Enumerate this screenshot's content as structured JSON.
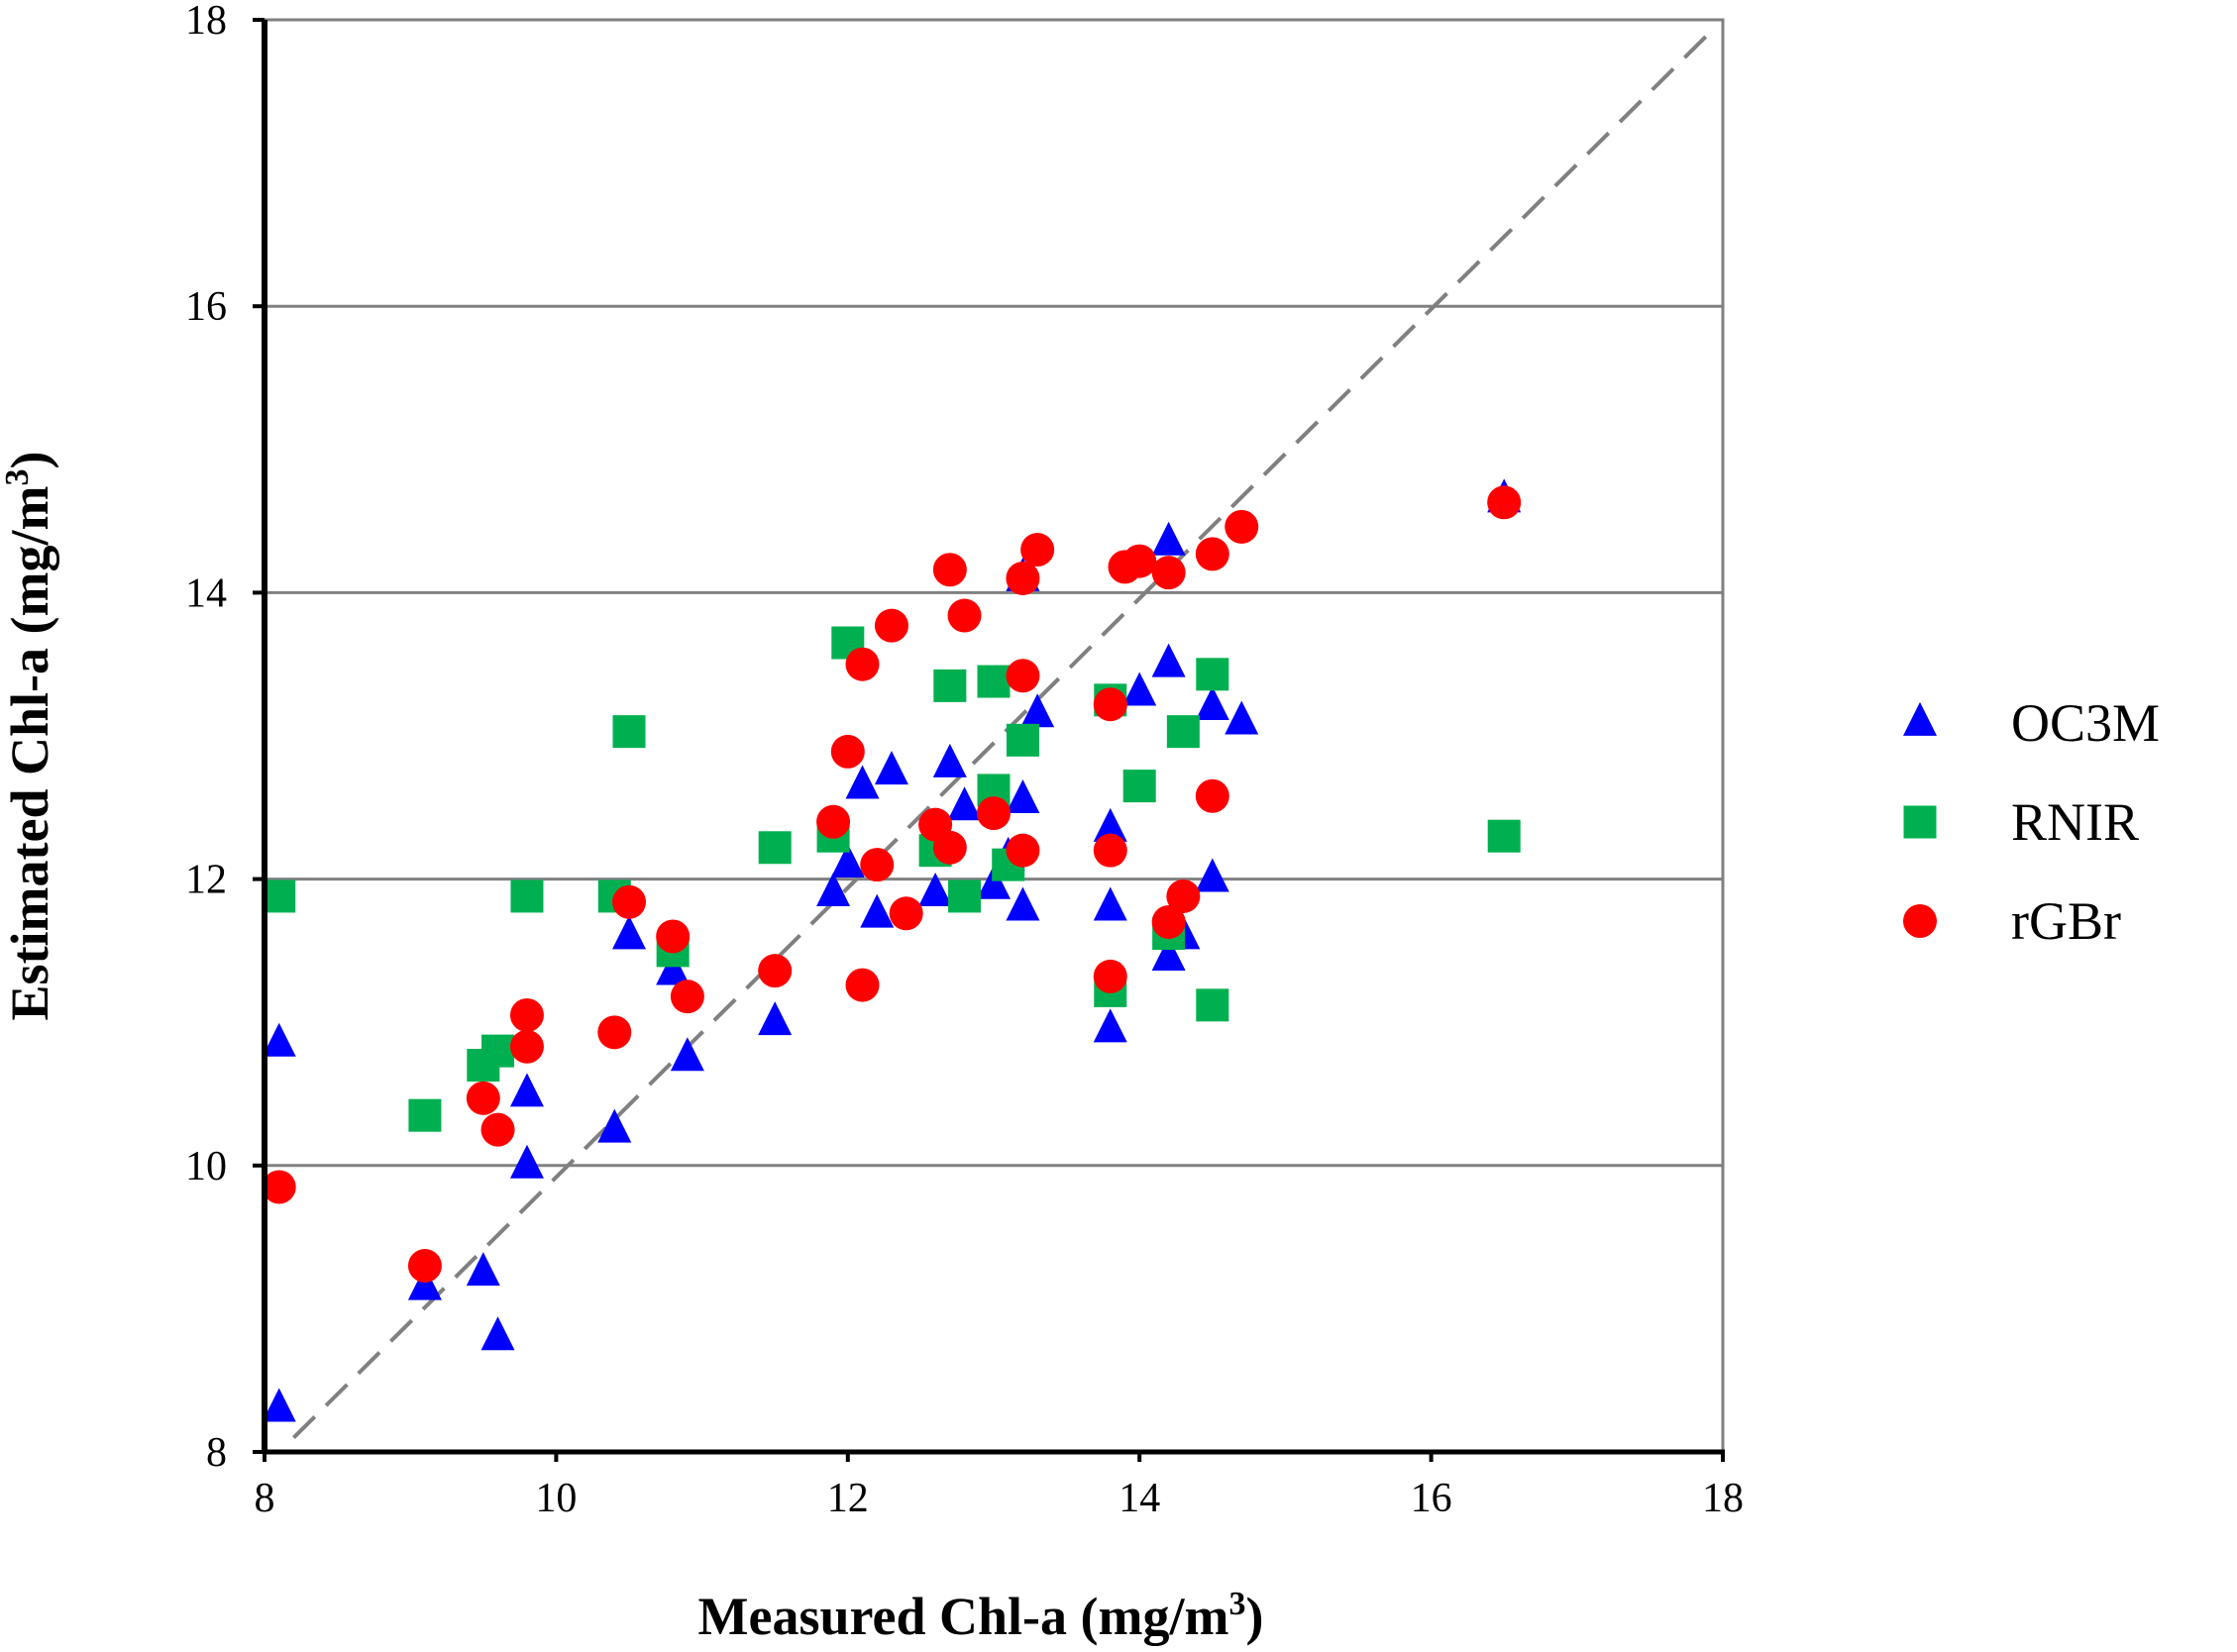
{
  "chart_data": {
    "type": "scatter",
    "title": "",
    "xlabel": "Measured Chl-a (mg/m",
    "xlabel_sup": "3",
    "xlabel_end": ")",
    "ylabel": "Estimated Chl-a (mg/m",
    "ylabel_sup": "3",
    "ylabel_end": ")",
    "xlim": [
      8,
      18
    ],
    "ylim": [
      8,
      18
    ],
    "xticks": [
      8,
      10,
      12,
      14,
      16,
      18
    ],
    "yticks": [
      8,
      10,
      12,
      14,
      16,
      18
    ],
    "grid": "horizontal",
    "reference_line": "1:1 dashed",
    "legend": "right",
    "series": [
      {
        "name": "OC3M",
        "marker": "triangle",
        "color": "#0000ff",
        "points": [
          [
            8.1,
            8.3
          ],
          [
            8.1,
            10.85
          ],
          [
            9.1,
            9.15
          ],
          [
            9.5,
            9.25
          ],
          [
            9.6,
            8.8
          ],
          [
            9.8,
            10.5
          ],
          [
            9.8,
            10.0
          ],
          [
            10.4,
            10.25
          ],
          [
            10.5,
            11.6
          ],
          [
            10.8,
            11.35
          ],
          [
            10.9,
            10.75
          ],
          [
            11.5,
            11.0
          ],
          [
            11.9,
            11.9
          ],
          [
            12.0,
            12.1
          ],
          [
            12.1,
            12.65
          ],
          [
            12.2,
            11.75
          ],
          [
            12.3,
            12.75
          ],
          [
            12.6,
            11.9
          ],
          [
            12.7,
            12.8
          ],
          [
            12.8,
            12.5
          ],
          [
            13.0,
            11.95
          ],
          [
            13.1,
            12.15
          ],
          [
            13.2,
            12.55
          ],
          [
            13.2,
            11.8
          ],
          [
            13.3,
            13.15
          ],
          [
            13.2,
            14.1
          ],
          [
            13.8,
            12.35
          ],
          [
            13.8,
            11.8
          ],
          [
            13.8,
            10.95
          ],
          [
            14.0,
            13.3
          ],
          [
            14.2,
            13.5
          ],
          [
            14.2,
            11.45
          ],
          [
            14.2,
            14.35
          ],
          [
            14.3,
            11.6
          ],
          [
            14.5,
            13.2
          ],
          [
            14.5,
            12.0
          ],
          [
            14.7,
            13.1
          ],
          [
            16.5,
            14.65
          ]
        ]
      },
      {
        "name": "RNIR",
        "marker": "square",
        "color": "#00b050",
        "points": [
          [
            8.1,
            11.88
          ],
          [
            9.1,
            10.35
          ],
          [
            9.5,
            10.7
          ],
          [
            9.6,
            10.8
          ],
          [
            9.8,
            11.88
          ],
          [
            10.4,
            11.88
          ],
          [
            10.5,
            13.03
          ],
          [
            10.8,
            11.5
          ],
          [
            11.5,
            12.22
          ],
          [
            11.9,
            12.3
          ],
          [
            12.0,
            13.65
          ],
          [
            12.6,
            12.2
          ],
          [
            12.7,
            13.35
          ],
          [
            12.8,
            11.88
          ],
          [
            13.0,
            13.38
          ],
          [
            13.0,
            12.62
          ],
          [
            13.1,
            12.1
          ],
          [
            13.2,
            12.97
          ],
          [
            13.8,
            13.25
          ],
          [
            13.8,
            11.22
          ],
          [
            14.0,
            12.65
          ],
          [
            14.2,
            11.62
          ],
          [
            14.3,
            13.03
          ],
          [
            14.5,
            13.43
          ],
          [
            14.5,
            11.12
          ],
          [
            16.5,
            12.3
          ]
        ]
      },
      {
        "name": "rGBr",
        "marker": "circle",
        "color": "#ff0000",
        "points": [
          [
            8.1,
            9.85
          ],
          [
            9.1,
            9.3
          ],
          [
            9.5,
            10.47
          ],
          [
            9.6,
            10.25
          ],
          [
            9.8,
            11.05
          ],
          [
            9.8,
            10.83
          ],
          [
            10.4,
            10.93
          ],
          [
            10.5,
            11.84
          ],
          [
            10.8,
            11.6
          ],
          [
            10.9,
            11.18
          ],
          [
            11.5,
            11.36
          ],
          [
            11.9,
            12.4
          ],
          [
            12.0,
            12.89
          ],
          [
            12.1,
            13.5
          ],
          [
            12.1,
            11.26
          ],
          [
            12.2,
            12.1
          ],
          [
            12.3,
            13.77
          ],
          [
            12.4,
            11.76
          ],
          [
            12.6,
            12.38
          ],
          [
            12.7,
            14.16
          ],
          [
            12.7,
            12.22
          ],
          [
            12.8,
            13.84
          ],
          [
            13.0,
            12.46
          ],
          [
            13.2,
            14.1
          ],
          [
            13.2,
            13.42
          ],
          [
            13.2,
            12.2
          ],
          [
            13.3,
            14.3
          ],
          [
            13.8,
            13.22
          ],
          [
            13.8,
            12.2
          ],
          [
            13.8,
            11.32
          ],
          [
            13.9,
            14.18
          ],
          [
            14.0,
            14.22
          ],
          [
            14.2,
            14.14
          ],
          [
            14.2,
            11.7
          ],
          [
            14.3,
            11.88
          ],
          [
            14.5,
            14.27
          ],
          [
            14.5,
            12.58
          ],
          [
            14.7,
            14.46
          ],
          [
            16.5,
            14.63
          ]
        ]
      }
    ]
  }
}
